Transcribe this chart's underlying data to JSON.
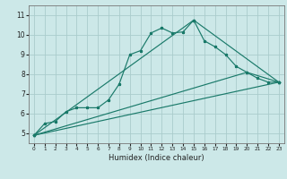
{
  "title": "",
  "xlabel": "Humidex (Indice chaleur)",
  "bg_color": "#cce8e8",
  "grid_color": "#aacccc",
  "line_color": "#1a7a6a",
  "xlim": [
    -0.5,
    23.5
  ],
  "ylim": [
    4.5,
    11.5
  ],
  "xticks": [
    0,
    1,
    2,
    3,
    4,
    5,
    6,
    7,
    8,
    9,
    10,
    11,
    12,
    13,
    14,
    15,
    16,
    17,
    18,
    19,
    20,
    21,
    22,
    23
  ],
  "yticks": [
    5,
    6,
    7,
    8,
    9,
    10,
    11
  ],
  "series": [
    [
      0,
      4.9
    ],
    [
      1,
      5.5
    ],
    [
      2,
      5.6
    ],
    [
      3,
      6.1
    ],
    [
      4,
      6.3
    ],
    [
      5,
      6.3
    ],
    [
      6,
      6.3
    ],
    [
      7,
      6.7
    ],
    [
      8,
      7.5
    ],
    [
      9,
      9.0
    ],
    [
      10,
      9.2
    ],
    [
      11,
      10.1
    ],
    [
      12,
      10.35
    ],
    [
      13,
      10.1
    ],
    [
      14,
      10.15
    ],
    [
      15,
      10.75
    ],
    [
      16,
      9.7
    ],
    [
      17,
      9.4
    ],
    [
      18,
      9.0
    ],
    [
      19,
      8.4
    ],
    [
      20,
      8.1
    ],
    [
      21,
      7.8
    ],
    [
      22,
      7.6
    ],
    [
      23,
      7.6
    ]
  ],
  "line2": [
    [
      0,
      4.9
    ],
    [
      23,
      7.6
    ]
  ],
  "line3": [
    [
      0,
      4.9
    ],
    [
      20,
      8.1
    ],
    [
      23,
      7.6
    ]
  ],
  "line4": [
    [
      0,
      4.9
    ],
    [
      15,
      10.75
    ],
    [
      23,
      7.6
    ]
  ]
}
